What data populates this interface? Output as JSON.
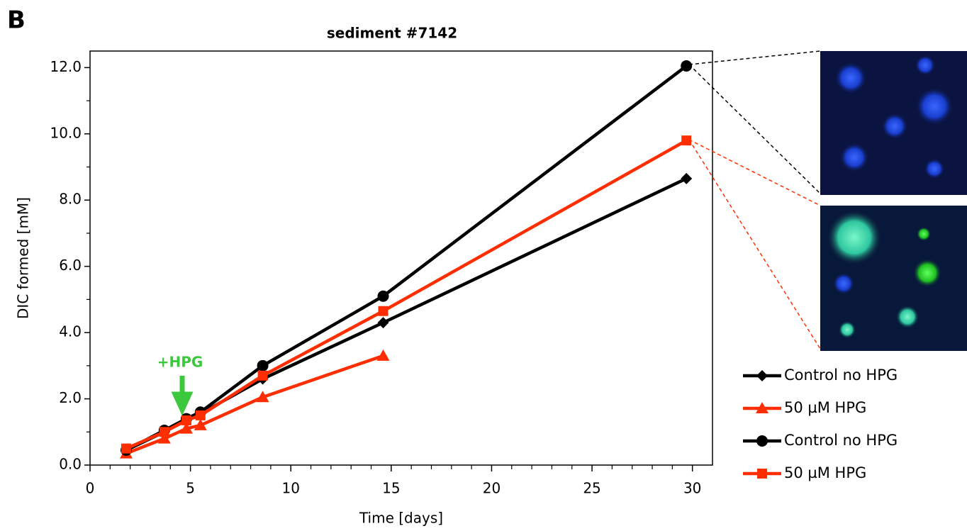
{
  "chart_data": {
    "type": "line",
    "panel_label": "B",
    "title": "sediment #7142",
    "x_label": "Time [days]",
    "y_label": "DIC formed [mM]",
    "annotation": "+HPG",
    "x": [
      1.8,
      3.7,
      4.8,
      5.5,
      8.6,
      14.6,
      29.7
    ],
    "series": [
      {
        "name": "Control no HPG",
        "color": "#000000",
        "marker": "diamond",
        "values": [
          0.45,
          1.0,
          1.35,
          1.55,
          2.6,
          4.3,
          8.65
        ]
      },
      {
        "name": "50 µM HPG",
        "color": "#ff2e00",
        "marker": "triangle",
        "values": [
          0.35,
          0.8,
          1.1,
          1.2,
          2.05,
          3.3,
          null
        ]
      },
      {
        "name": "Control no HPG",
        "color": "#000000",
        "marker": "circle",
        "values": [
          0.45,
          1.05,
          1.4,
          1.6,
          3.0,
          5.1,
          12.05
        ]
      },
      {
        "name": "50 µM HPG",
        "color": "#ff2e00",
        "marker": "square",
        "values": [
          0.5,
          1.0,
          1.35,
          1.5,
          2.7,
          4.65,
          9.8
        ]
      }
    ],
    "xlim": [
      0,
      31
    ],
    "ylim": [
      0,
      12.5
    ],
    "xticks": [
      0,
      5,
      10,
      15,
      20,
      25,
      30
    ],
    "yticks": [
      {
        "value": 0,
        "label": "0.0"
      },
      {
        "value": 2,
        "label": "2.0"
      },
      {
        "value": 4,
        "label": "4.0"
      },
      {
        "value": 6,
        "label": "6.0"
      },
      {
        "value": 8,
        "label": "8.0"
      },
      {
        "value": 10,
        "label": "10.0"
      },
      {
        "value": 12,
        "label": "12.0"
      }
    ],
    "x_minor_ticks": [
      1,
      2,
      3,
      4,
      6,
      7,
      8,
      9,
      11,
      12,
      13,
      14,
      16,
      17,
      18,
      19,
      21,
      22,
      23,
      24,
      26,
      27,
      28,
      29
    ],
    "y_minor_ticks": [
      1,
      3,
      5,
      7,
      9,
      11
    ],
    "legend": "lower right"
  }
}
